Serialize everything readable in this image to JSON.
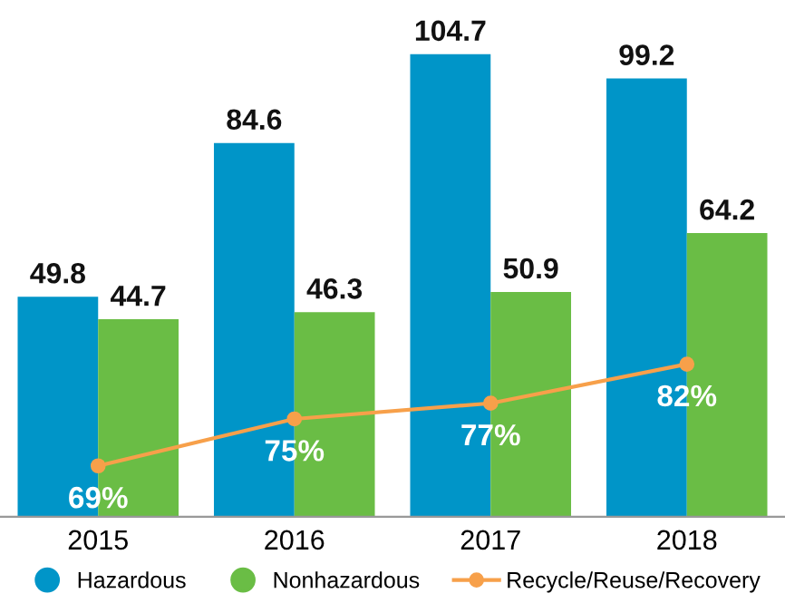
{
  "chart_data": {
    "type": "bar",
    "categories": [
      "2015",
      "2016",
      "2017",
      "2018"
    ],
    "series": [
      {
        "name": "Hazardous",
        "color": "#0095c8",
        "values": [
          49.8,
          84.6,
          104.7,
          99.2
        ]
      },
      {
        "name": "Nonhazardous",
        "color": "#6abd45",
        "values": [
          44.7,
          46.3,
          50.9,
          64.2
        ]
      },
      {
        "name": "Recycle/Reuse/Recovery",
        "type": "line",
        "axis": "y2",
        "color": "#f7a04a",
        "marker": "circle",
        "values": [
          69,
          75,
          77,
          82
        ],
        "value_labels": [
          "69%",
          "75%",
          "77%",
          "82%"
        ]
      }
    ],
    "data_labels": true,
    "tick_labels": "x",
    "legend": "bottom",
    "grid": false
  }
}
